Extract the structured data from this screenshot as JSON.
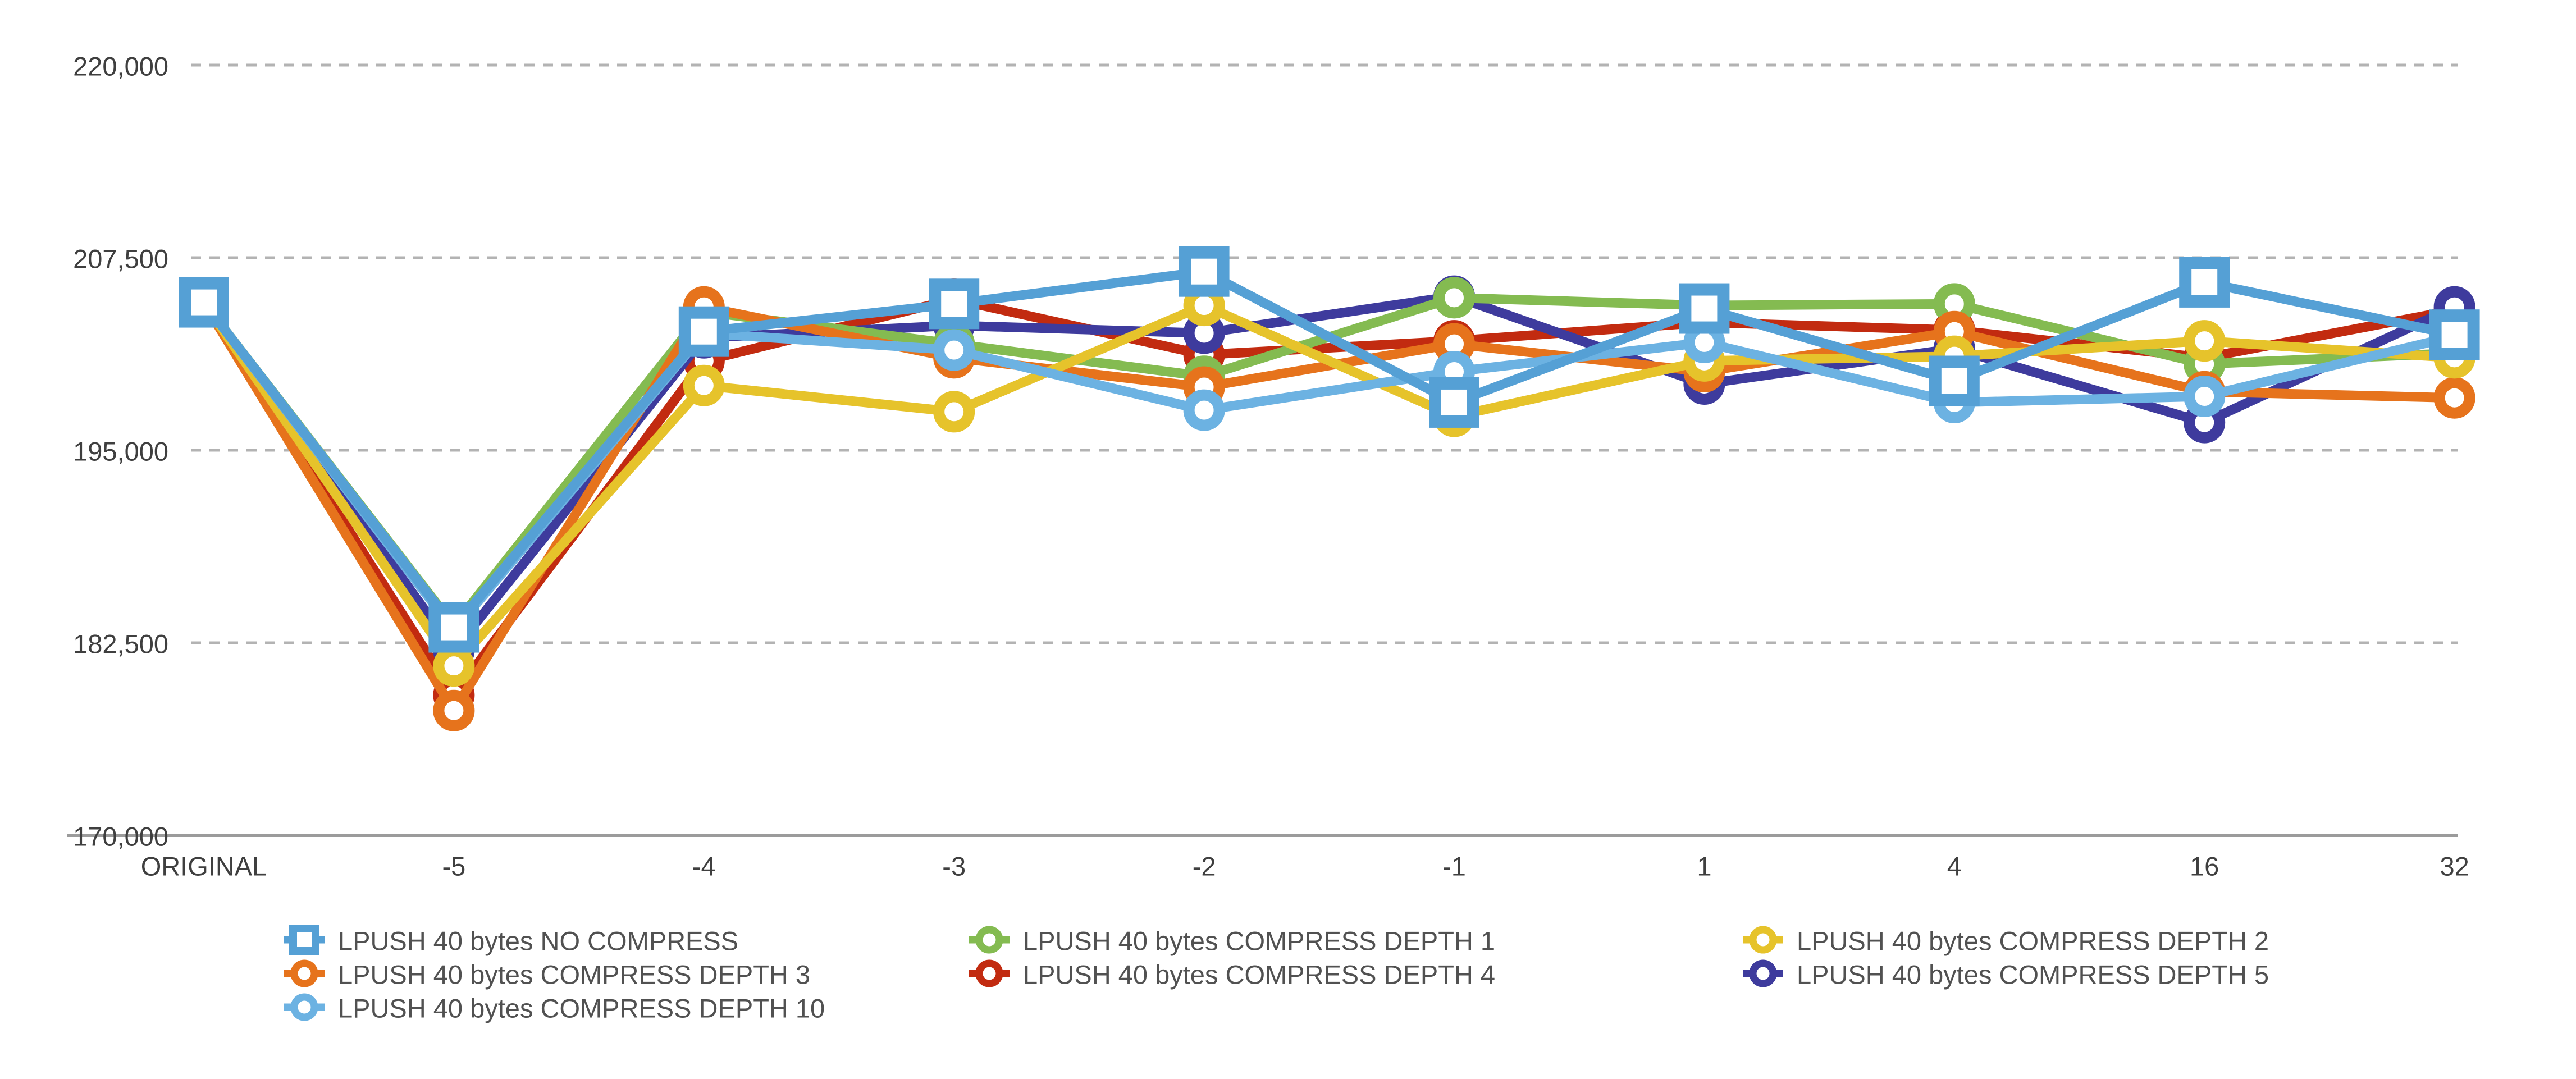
{
  "chart_data": {
    "type": "line",
    "title": "",
    "categories": [
      "ORIGINAL",
      "-5",
      "-4",
      "-3",
      "-2",
      "-1",
      "1",
      "4",
      "16",
      "32"
    ],
    "y_axis": {
      "min": 170000,
      "max": 220000,
      "ticks": [
        {
          "value": 170000,
          "label": "170,000"
        },
        {
          "value": 182500,
          "label": "182,500"
        },
        {
          "value": 195000,
          "label": "195,000"
        },
        {
          "value": 207500,
          "label": "207,500"
        },
        {
          "value": 220000,
          "label": "220,000"
        }
      ]
    },
    "grid": "horizontal-dashed",
    "legend_position": "bottom",
    "series": [
      {
        "id": "depth4",
        "name": "LPUSH 40 bytes COMPRESS DEPTH 4",
        "color": "#c22b10",
        "marker": "circle",
        "values": [
          204600,
          179100,
          200800,
          204800,
          201200,
          202100,
          203300,
          202800,
          201000,
          204100
        ]
      },
      {
        "id": "depth5",
        "name": "LPUSH 40 bytes COMPRESS DEPTH 5",
        "color": "#3e3b9d",
        "marker": "circle",
        "values": [
          204600,
          182000,
          202300,
          203100,
          202600,
          205000,
          199300,
          201600,
          196800,
          204300
        ]
      },
      {
        "id": "depth1",
        "name": "LPUSH 40 bytes COMPRESS DEPTH 1",
        "color": "#84bb51",
        "marker": "circle",
        "values": [
          204600,
          183600,
          204000,
          201900,
          199800,
          204900,
          204400,
          204500,
          200600,
          201300
        ]
      },
      {
        "id": "depth3",
        "name": "LPUSH 40 bytes COMPRESS DEPTH 3",
        "color": "#e6731c",
        "marker": "circle",
        "values": [
          204600,
          178100,
          204300,
          201000,
          199100,
          201900,
          200100,
          202700,
          198800,
          198400
        ]
      },
      {
        "id": "depth2",
        "name": "LPUSH 40 bytes COMPRESS DEPTH 2",
        "color": "#e6c32b",
        "marker": "circle",
        "values": [
          204600,
          181000,
          199200,
          197500,
          204400,
          197200,
          200800,
          201100,
          202100,
          201000
        ]
      },
      {
        "id": "depth10",
        "name": "LPUSH 40 bytes COMPRESS DEPTH 10",
        "color": "#6cb2e2",
        "marker": "circle",
        "values": [
          204600,
          183300,
          202600,
          201500,
          197600,
          200100,
          202000,
          198100,
          198500,
          202400
        ]
      },
      {
        "id": "no_compress",
        "name": "LPUSH 40 bytes NO COMPRESS",
        "color": "#55a0d5",
        "marker": "square",
        "values": [
          204600,
          183500,
          202700,
          204500,
          206600,
          198100,
          204200,
          199500,
          205900,
          202500
        ]
      }
    ],
    "legend": {
      "columns": [
        {
          "series_ids": [
            "no_compress",
            "depth3",
            "depth10"
          ]
        },
        {
          "series_ids": [
            "depth1",
            "depth4"
          ]
        },
        {
          "series_ids": [
            "depth2",
            "depth5"
          ]
        }
      ]
    }
  },
  "style": {
    "gridline_color": "#b3b3b3",
    "axis_line_color": "#9b9b9b",
    "tick_label_color": "#3f3f3f",
    "legend_text_color": "#515151"
  }
}
